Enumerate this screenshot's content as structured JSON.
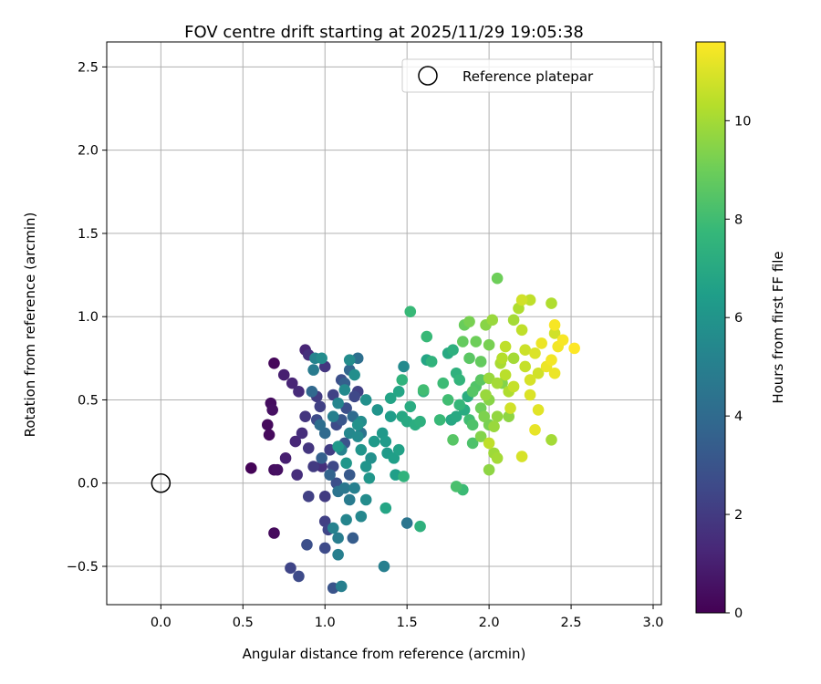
{
  "chart_data": {
    "type": "scatter",
    "title": "FOV centre drift starting at 2025/11/29 19:05:38",
    "xlabel": "Angular distance from reference (arcmin)",
    "ylabel": "Rotation from reference (arcmin)",
    "xlim": [
      -0.33,
      3.05
    ],
    "ylim": [
      -0.73,
      2.65
    ],
    "x_ticks": [
      0.0,
      0.5,
      1.0,
      1.5,
      2.0,
      2.5,
      3.0
    ],
    "x_tick_labels": [
      "0.0",
      "0.5",
      "1.0",
      "1.5",
      "2.0",
      "2.5",
      "3.0"
    ],
    "y_ticks": [
      -0.5,
      0.0,
      0.5,
      1.0,
      1.5,
      2.0,
      2.5
    ],
    "y_tick_labels": [
      "−0.5",
      "0.0",
      "0.5",
      "1.0",
      "1.5",
      "2.0",
      "2.5"
    ],
    "grid": true,
    "legend": {
      "position": "top-right",
      "entries": [
        "Reference platepar"
      ]
    },
    "reference_point": {
      "x": 0.0,
      "y": 0.0,
      "label": "Reference platepar"
    },
    "colorbar": {
      "label": "Hours from first FF file",
      "range": [
        0,
        11.6
      ],
      "colormap": "viridis",
      "ticks": [
        0,
        2,
        4,
        6,
        8,
        10
      ],
      "tick_labels": [
        "0",
        "2",
        "4",
        "6",
        "8",
        "10"
      ]
    },
    "points": [
      [
        0.55,
        0.09,
        0.1
      ],
      [
        0.69,
        0.72,
        0.2
      ],
      [
        0.66,
        0.29,
        0.3
      ],
      [
        0.65,
        0.35,
        0.3
      ],
      [
        0.67,
        0.48,
        0.4
      ],
      [
        0.68,
        0.44,
        0.5
      ],
      [
        0.69,
        0.08,
        0.4
      ],
      [
        0.71,
        0.08,
        0.5
      ],
      [
        0.69,
        -0.3,
        0.3
      ],
      [
        0.75,
        0.65,
        1.0
      ],
      [
        0.76,
        0.15,
        1.0
      ],
      [
        0.8,
        0.6,
        1.2
      ],
      [
        0.82,
        0.25,
        1.3
      ],
      [
        0.84,
        0.55,
        1.4
      ],
      [
        0.83,
        0.05,
        1.5
      ],
      [
        0.79,
        -0.51,
        2.4
      ],
      [
        0.84,
        -0.56,
        2.6
      ],
      [
        0.89,
        -0.37,
        2.8
      ],
      [
        0.88,
        0.8,
        1.2
      ],
      [
        0.9,
        0.77,
        1.6
      ],
      [
        0.88,
        0.4,
        1.8
      ],
      [
        0.86,
        0.3,
        1.5
      ],
      [
        0.9,
        0.21,
        1.8
      ],
      [
        0.93,
        0.1,
        2.0
      ],
      [
        0.9,
        -0.08,
        2.2
      ],
      [
        0.95,
        0.52,
        2.0
      ],
      [
        0.97,
        0.46,
        2.2
      ],
      [
        1.0,
        0.7,
        1.8
      ],
      [
        0.98,
        0.1,
        1.6
      ],
      [
        1.0,
        -0.08,
        2.0
      ],
      [
        1.0,
        -0.23,
        2.2
      ],
      [
        1.02,
        -0.28,
        2.4
      ],
      [
        1.0,
        -0.39,
        2.6
      ],
      [
        1.05,
        -0.63,
        3.0
      ],
      [
        1.1,
        -0.62,
        5.0
      ],
      [
        1.08,
        -0.43,
        5.0
      ],
      [
        1.05,
        0.53,
        2.3
      ],
      [
        1.07,
        0.35,
        2.6
      ],
      [
        1.1,
        0.62,
        2.8
      ],
      [
        1.12,
        0.24,
        3.0
      ],
      [
        1.15,
        0.05,
        3.2
      ],
      [
        1.17,
        -0.33,
        3.4
      ],
      [
        1.13,
        0.45,
        2.8
      ],
      [
        1.18,
        0.52,
        2.5
      ],
      [
        1.2,
        0.55,
        2.2
      ],
      [
        1.03,
        0.2,
        2.1
      ],
      [
        1.05,
        0.1,
        2.5
      ],
      [
        1.07,
        0.0,
        2.8
      ],
      [
        1.1,
        0.38,
        3.1
      ],
      [
        1.12,
        0.6,
        3.5
      ],
      [
        1.15,
        0.68,
        3.8
      ],
      [
        1.17,
        0.4,
        4.0
      ],
      [
        1.2,
        0.75,
        4.2
      ],
      [
        1.22,
        0.3,
        4.4
      ],
      [
        0.95,
        0.38,
        2.6
      ],
      [
        0.93,
        0.68,
        4.8
      ],
      [
        0.94,
        0.75,
        5.2
      ],
      [
        0.98,
        0.75,
        5.6
      ],
      [
        0.97,
        0.35,
        4.2
      ],
      [
        1.0,
        0.3,
        4.0
      ],
      [
        0.92,
        0.55,
        3.9
      ],
      [
        0.98,
        0.15,
        3.5
      ],
      [
        1.03,
        0.05,
        3.7
      ],
      [
        1.08,
        -0.05,
        4.4
      ],
      [
        1.12,
        -0.03,
        4.6
      ],
      [
        1.15,
        -0.1,
        4.8
      ],
      [
        1.18,
        -0.03,
        5.0
      ],
      [
        1.25,
        -0.1,
        5.6
      ],
      [
        1.22,
        -0.2,
        5.4
      ],
      [
        1.13,
        -0.22,
        5.3
      ],
      [
        1.05,
        -0.27,
        5.1
      ],
      [
        1.08,
        -0.33,
        4.9
      ],
      [
        1.1,
        0.2,
        5.2
      ],
      [
        1.15,
        0.3,
        5.4
      ],
      [
        1.2,
        0.28,
        5.5
      ],
      [
        1.22,
        0.37,
        5.6
      ],
      [
        1.25,
        0.5,
        5.8
      ],
      [
        1.28,
        0.15,
        5.8
      ],
      [
        1.25,
        0.1,
        6.0
      ],
      [
        1.27,
        0.03,
        6.1
      ],
      [
        1.3,
        0.25,
        6.2
      ],
      [
        1.05,
        0.4,
        5.0
      ],
      [
        1.08,
        0.48,
        5.3
      ],
      [
        1.12,
        0.56,
        5.5
      ],
      [
        1.15,
        0.74,
        5.6
      ],
      [
        1.18,
        0.65,
        5.7
      ],
      [
        1.2,
        0.35,
        5.9
      ],
      [
        1.22,
        0.2,
        6.0
      ],
      [
        1.13,
        0.12,
        6.1
      ],
      [
        1.08,
        0.22,
        6.2
      ],
      [
        1.32,
        0.44,
        6.0
      ],
      [
        1.35,
        0.3,
        6.2
      ],
      [
        1.37,
        0.25,
        6.3
      ],
      [
        1.4,
        0.4,
        6.4
      ],
      [
        1.38,
        0.18,
        6.3
      ],
      [
        1.42,
        0.15,
        6.5
      ],
      [
        1.45,
        0.2,
        6.6
      ],
      [
        1.4,
        0.51,
        6.7
      ],
      [
        1.45,
        0.55,
        6.8
      ],
      [
        1.47,
        0.4,
        6.9
      ],
      [
        1.5,
        0.37,
        7.0
      ],
      [
        1.52,
        0.46,
        7.1
      ],
      [
        1.55,
        0.35,
        7.2
      ],
      [
        1.58,
        0.37,
        7.3
      ],
      [
        1.6,
        0.55,
        7.3
      ],
      [
        1.47,
        0.62,
        7.5
      ],
      [
        1.48,
        0.7,
        5.5
      ],
      [
        1.5,
        -0.24,
        4.5
      ],
      [
        1.36,
        -0.5,
        5.0
      ],
      [
        1.37,
        -0.15,
        6.8
      ],
      [
        1.43,
        0.05,
        6.5
      ],
      [
        1.48,
        0.04,
        7.5
      ],
      [
        1.58,
        -0.26,
        7.4
      ],
      [
        1.52,
        1.03,
        7.8
      ],
      [
        1.62,
        0.88,
        7.8
      ],
      [
        1.6,
        0.56,
        8.0
      ],
      [
        1.62,
        0.74,
        6.8
      ],
      [
        1.65,
        0.73,
        7.5
      ],
      [
        1.7,
        0.38,
        7.8
      ],
      [
        1.72,
        0.6,
        7.9
      ],
      [
        1.75,
        0.5,
        8.0
      ],
      [
        1.75,
        0.78,
        7.0
      ],
      [
        1.78,
        0.8,
        7.3
      ],
      [
        1.8,
        0.66,
        7.4
      ],
      [
        1.82,
        0.62,
        7.6
      ],
      [
        1.82,
        0.47,
        7.7
      ],
      [
        1.77,
        0.38,
        6.9
      ],
      [
        1.8,
        0.4,
        7.0
      ],
      [
        1.85,
        0.44,
        7.1
      ],
      [
        1.87,
        0.52,
        7.2
      ],
      [
        1.88,
        0.38,
        8.0
      ],
      [
        1.9,
        0.35,
        8.3
      ],
      [
        1.9,
        0.55,
        8.5
      ],
      [
        1.92,
        0.58,
        8.4
      ],
      [
        1.95,
        0.62,
        8.6
      ],
      [
        1.78,
        0.26,
        8.5
      ],
      [
        1.8,
        -0.02,
        8.2
      ],
      [
        1.84,
        -0.04,
        7.9
      ],
      [
        1.9,
        0.24,
        8.3
      ],
      [
        1.95,
        0.45,
        9.0
      ],
      [
        1.97,
        0.4,
        9.3
      ],
      [
        2.0,
        0.35,
        9.2
      ],
      [
        2.0,
        0.5,
        9.5
      ],
      [
        1.98,
        0.53,
        9.8
      ],
      [
        1.84,
        0.85,
        8.8
      ],
      [
        1.85,
        0.95,
        8.9
      ],
      [
        1.88,
        0.97,
        9.2
      ],
      [
        1.88,
        0.75,
        8.6
      ],
      [
        1.92,
        0.85,
        9.0
      ],
      [
        1.95,
        0.73,
        8.8
      ],
      [
        1.98,
        0.95,
        9.5
      ],
      [
        2.0,
        0.83,
        9.2
      ],
      [
        2.02,
        0.98,
        9.8
      ],
      [
        2.0,
        0.08,
        9.6
      ],
      [
        2.03,
        0.18,
        9.9
      ],
      [
        2.05,
        0.15,
        10.0
      ],
      [
        2.0,
        0.24,
        10.5
      ],
      [
        2.03,
        0.34,
        9.8
      ],
      [
        2.05,
        0.6,
        10.0
      ],
      [
        2.07,
        0.72,
        10.1
      ],
      [
        2.05,
        1.23,
        9.0
      ],
      [
        2.08,
        0.75,
        10.3
      ],
      [
        2.1,
        0.82,
        10.5
      ],
      [
        2.1,
        0.65,
        10.4
      ],
      [
        2.12,
        0.55,
        10.2
      ],
      [
        2.15,
        0.58,
        10.6
      ],
      [
        2.13,
        0.45,
        10.8
      ],
      [
        2.15,
        0.98,
        10.0
      ],
      [
        2.18,
        1.05,
        10.2
      ],
      [
        2.2,
        1.1,
        10.8
      ],
      [
        2.2,
        0.92,
        10.5
      ],
      [
        2.22,
        0.8,
        10.7
      ],
      [
        2.22,
        0.7,
        10.6
      ],
      [
        2.25,
        0.62,
        10.9
      ],
      [
        2.25,
        0.53,
        11.0
      ],
      [
        2.28,
        0.78,
        11.0
      ],
      [
        2.3,
        0.66,
        10.8
      ],
      [
        2.3,
        0.44,
        11.1
      ],
      [
        2.28,
        0.32,
        11.2
      ],
      [
        2.2,
        0.16,
        10.9
      ],
      [
        2.32,
        0.84,
        11.3
      ],
      [
        2.35,
        0.7,
        11.3
      ],
      [
        2.38,
        0.74,
        11.4
      ],
      [
        2.4,
        0.95,
        11.5
      ],
      [
        2.38,
        0.26,
        10.0
      ],
      [
        2.4,
        0.66,
        11.3
      ],
      [
        2.42,
        0.82,
        11.4
      ],
      [
        2.45,
        0.86,
        11.5
      ],
      [
        2.52,
        0.81,
        11.6
      ],
      [
        2.38,
        1.08,
        10.2
      ],
      [
        2.4,
        0.9,
        10.8
      ],
      [
        2.25,
        1.1,
        10.5
      ],
      [
        2.15,
        0.75,
        10.0
      ],
      [
        2.08,
        0.6,
        9.4
      ],
      [
        2.12,
        0.4,
        9.6
      ],
      [
        2.0,
        0.63,
        9.8
      ],
      [
        2.05,
        0.4,
        9.7
      ],
      [
        1.95,
        0.28,
        9.4
      ]
    ]
  }
}
